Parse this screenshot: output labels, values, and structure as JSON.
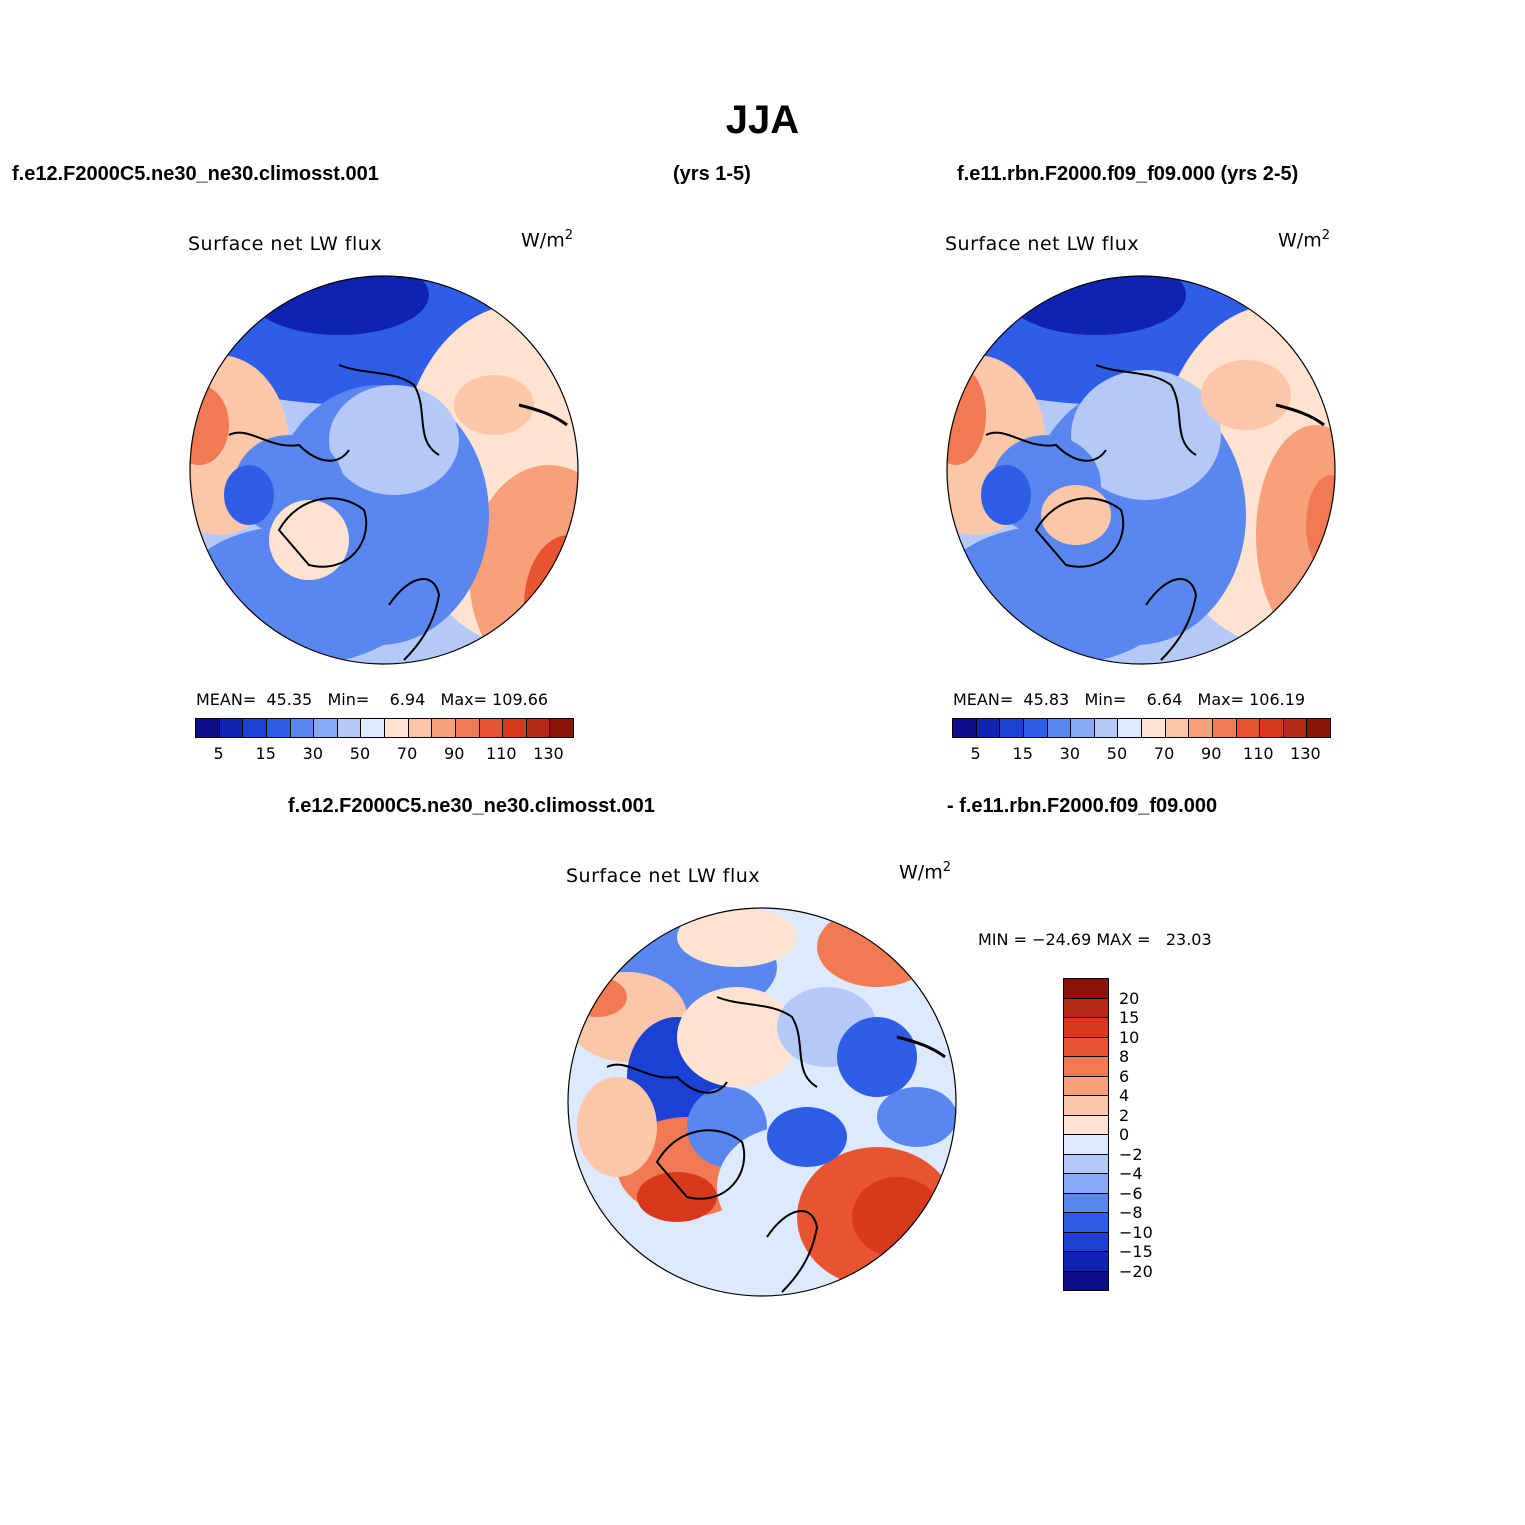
{
  "title": "JJA",
  "header": {
    "left_case": "f.e12.F2000C5.ne30_ne30.climosst.001",
    "middle_years": "(yrs 1-5)",
    "right_case": "f.e11.rbn.F2000.f09_f09.000 (yrs 2-5)"
  },
  "panels": [
    {
      "label": "Surface net LW flux",
      "units_base": "W/m",
      "units_exp": "2",
      "stats": {
        "mean_label": "MEAN=",
        "mean": "45.35",
        "min_label": "Min=",
        "min": "6.94",
        "max_label": "Max=",
        "max": "109.66"
      }
    },
    {
      "label": "Surface net LW flux",
      "units_base": "W/m",
      "units_exp": "2",
      "stats": {
        "mean_label": "MEAN=",
        "mean": "45.83",
        "min_label": "Min=",
        "min": "6.64",
        "max_label": "Max=",
        "max": "106.19"
      }
    }
  ],
  "difference": {
    "title_left": "f.e12.F2000C5.ne30_ne30.climosst.001",
    "title_right": "- f.e11.rbn.F2000.f09_f09.000",
    "label": "Surface net LW flux",
    "units_base": "W/m",
    "units_exp": "2",
    "minmax": "MIN = −24.69 MAX =   23.03"
  },
  "colorbar_main": {
    "colors": [
      "#0d0d8a",
      "#1023b0",
      "#1a40d4",
      "#2e5ee8",
      "#5a86f0",
      "#88a9f5",
      "#b5c9f8",
      "#dde9fc",
      "#fde3d0",
      "#fcc7a9",
      "#f8a07b",
      "#f27a52",
      "#e8542f",
      "#d8391c",
      "#b52a14",
      "#8a140a"
    ],
    "tick_labels": [
      "5",
      "15",
      "30",
      "50",
      "70",
      "90",
      "110",
      "130"
    ]
  },
  "colorbar_diff": {
    "colors": [
      "#8a140a",
      "#b52a14",
      "#d8391c",
      "#e8542f",
      "#f27a52",
      "#f8a07b",
      "#fcc7a9",
      "#fde3d0",
      "#dde9fc",
      "#b5c9f8",
      "#88a9f5",
      "#5a86f0",
      "#2e5ee8",
      "#1a40d4",
      "#1023b0",
      "#0d0d8a"
    ],
    "tick_labels": [
      "20",
      "15",
      "10",
      "8",
      "6",
      "4",
      "2",
      "0",
      "−2",
      "−4",
      "−6",
      "−8",
      "−10",
      "−15",
      "−20"
    ]
  },
  "map_colors": {
    "deep_blue": "#1a40d4",
    "mid_blue": "#5a86f0",
    "light_blue": "#b5c9f8",
    "pale_blue": "#dde9fc",
    "pale_orange": "#fde3d0",
    "light_orange": "#fcc7a9",
    "orange": "#f27a52",
    "red": "#d8391c"
  }
}
